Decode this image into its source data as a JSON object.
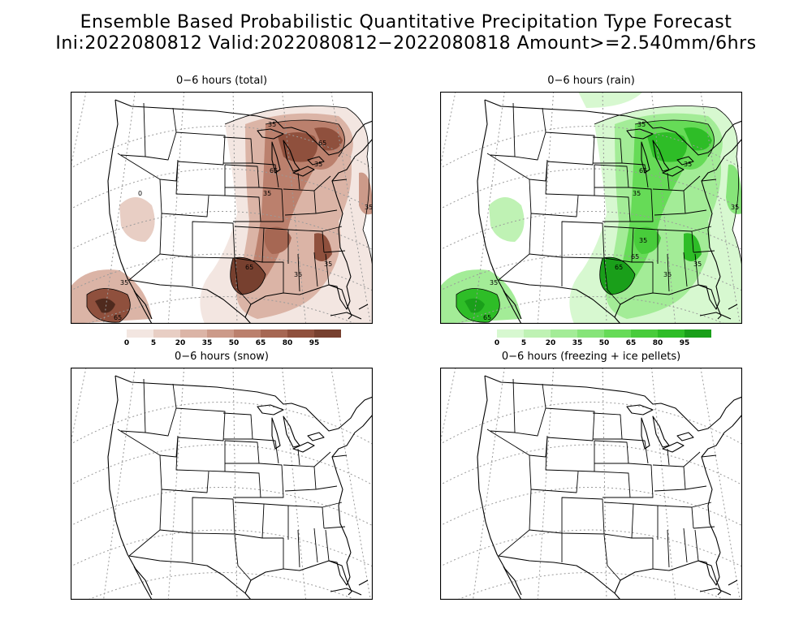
{
  "title_line1": "Ensemble Based Probabilistic Quantitative Precipitation Type Forecast",
  "title_line2": "Ini:2022080812 Valid:2022080812−2022080818 Amount>=2.540mm/6hrs",
  "panels": {
    "total": {
      "title": "0−6 hours (total)"
    },
    "rain": {
      "title": "0−6 hours (rain)"
    },
    "snow": {
      "title": "0−6 hours (snow)"
    },
    "ice": {
      "title": "0−6 hours (freezing + ice pellets)"
    }
  },
  "contour_labels": {
    "c0": "0",
    "c35": "35",
    "c65": "65"
  },
  "legend": {
    "levels": [
      "0",
      "5",
      "20",
      "35",
      "50",
      "65",
      "80",
      "95"
    ],
    "brown_colors": [
      "#f3e6e1",
      "#e8cec4",
      "#dbb4a6",
      "#cc9a89",
      "#bb806d",
      "#a66753",
      "#8f503d",
      "#77402f"
    ],
    "green_colors": [
      "#d7f8d0",
      "#bff2b4",
      "#a3ec97",
      "#86e479",
      "#66db57",
      "#48cc3b",
      "#2ebd27",
      "#1a9f1a"
    ]
  },
  "colors": {
    "border": "#000000",
    "graticule": "#9a9a9a"
  }
}
